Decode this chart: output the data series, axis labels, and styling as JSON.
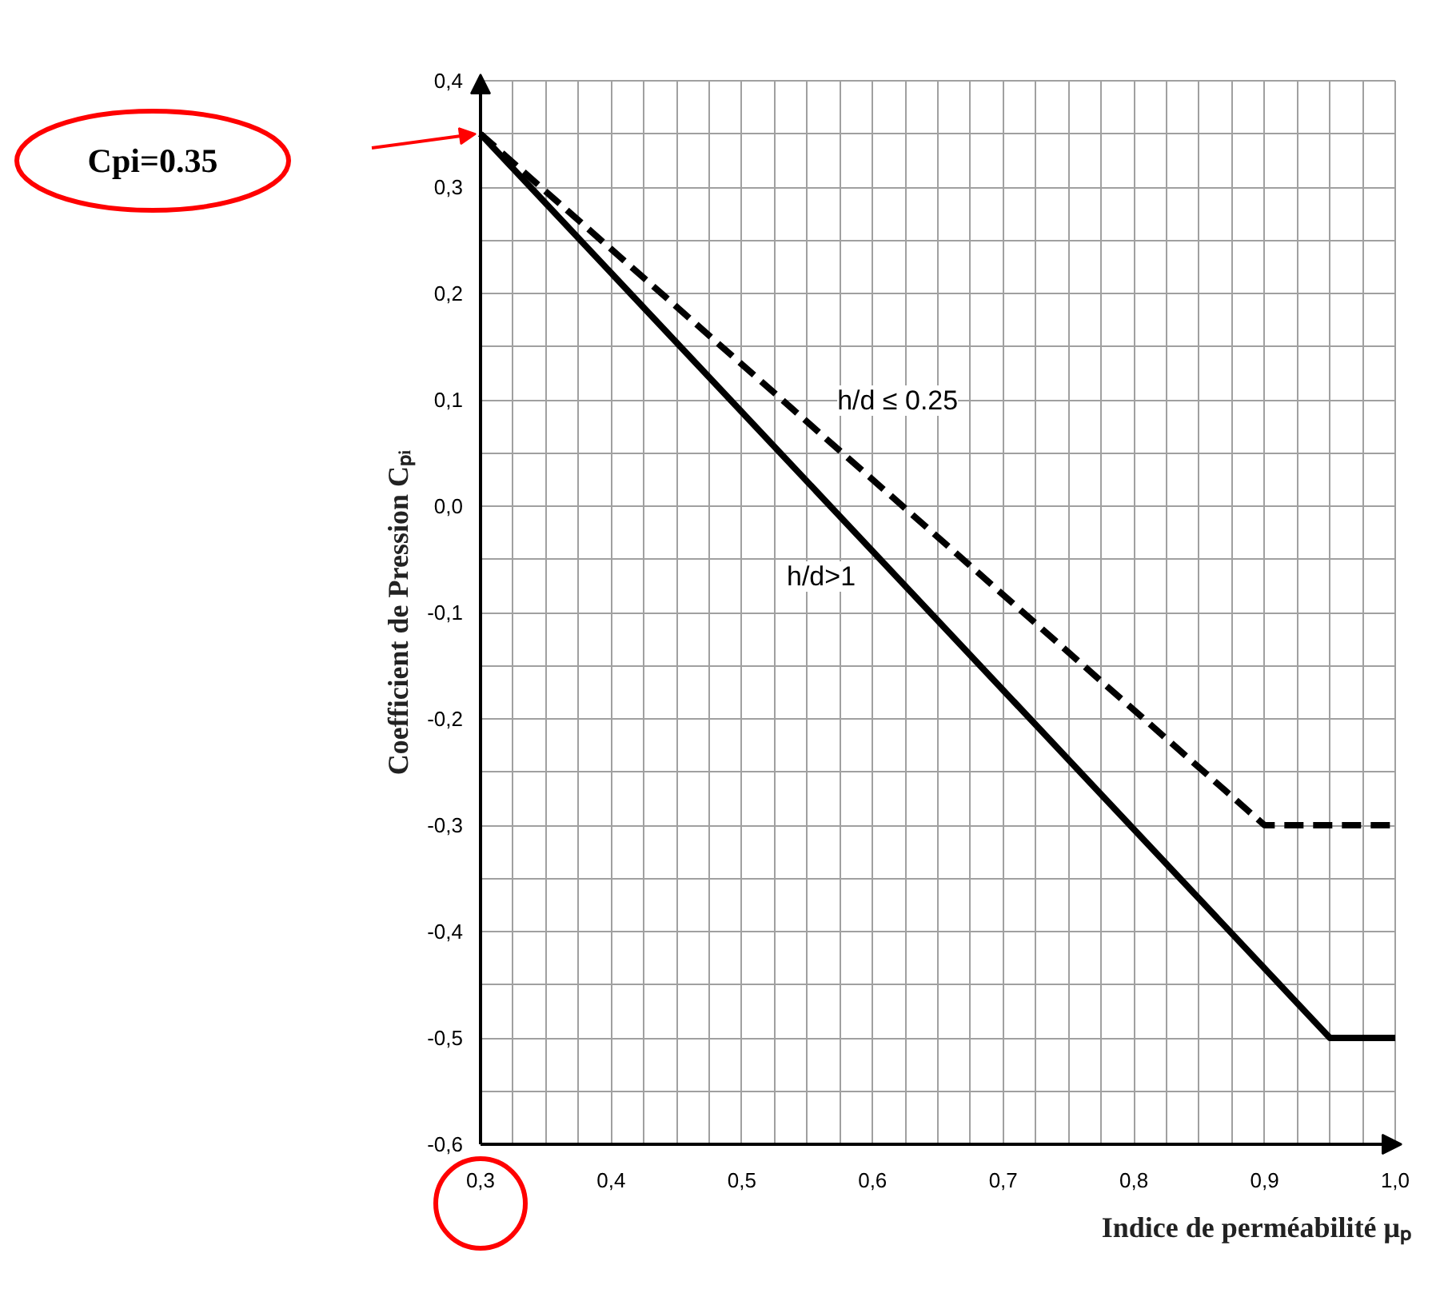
{
  "chart_data": {
    "type": "line",
    "xlabel": "Indice de perméabilité μₚ",
    "ylabel": "Coefficient de Pression Cₚᵢ",
    "series": [
      {
        "name": "h/d>1",
        "color": "#000000",
        "line_style": "solid",
        "x": [
          0.3,
          0.95,
          1.0
        ],
        "values": [
          0.35,
          -0.5,
          -0.5
        ]
      },
      {
        "name": "h/d ≤ 0.25",
        "color": "#000000",
        "line_style": "dashed",
        "x": [
          0.3,
          0.9,
          1.0
        ],
        "values": [
          0.35,
          -0.3,
          -0.3
        ]
      }
    ],
    "xlim": [
      0.3,
      1.0
    ],
    "ylim": [
      -0.6,
      0.4
    ],
    "xticks": [
      {
        "value": 0.3,
        "label": "0,3"
      },
      {
        "value": 0.325,
        "label": null
      },
      {
        "value": 0.35,
        "label": null
      },
      {
        "value": 0.375,
        "label": null
      },
      {
        "value": 0.4,
        "label": "0,4"
      },
      {
        "value": 0.425,
        "label": null
      },
      {
        "value": 0.45,
        "label": null
      },
      {
        "value": 0.475,
        "label": null
      },
      {
        "value": 0.5,
        "label": "0,5"
      },
      {
        "value": 0.525,
        "label": null
      },
      {
        "value": 0.55,
        "label": null
      },
      {
        "value": 0.575,
        "label": null
      },
      {
        "value": 0.6,
        "label": "0,6"
      },
      {
        "value": 0.625,
        "label": null
      },
      {
        "value": 0.65,
        "label": null
      },
      {
        "value": 0.675,
        "label": null
      },
      {
        "value": 0.7,
        "label": "0,7"
      },
      {
        "value": 0.725,
        "label": null
      },
      {
        "value": 0.75,
        "label": null
      },
      {
        "value": 0.775,
        "label": null
      },
      {
        "value": 0.8,
        "label": "0,8"
      },
      {
        "value": 0.825,
        "label": null
      },
      {
        "value": 0.85,
        "label": null
      },
      {
        "value": 0.875,
        "label": null
      },
      {
        "value": 0.9,
        "label": "0,9"
      },
      {
        "value": 0.925,
        "label": null
      },
      {
        "value": 0.95,
        "label": null
      },
      {
        "value": 0.975,
        "label": null
      },
      {
        "value": 1.0,
        "label": "1,0"
      }
    ],
    "yticks": [
      {
        "value": -0.6,
        "label": "-0,6"
      },
      {
        "value": -0.55,
        "label": null
      },
      {
        "value": -0.5,
        "label": "-0,5"
      },
      {
        "value": -0.45,
        "label": null
      },
      {
        "value": -0.4,
        "label": "-0,4"
      },
      {
        "value": -0.35,
        "label": null
      },
      {
        "value": -0.3,
        "label": "-0,3"
      },
      {
        "value": -0.25,
        "label": null
      },
      {
        "value": -0.2,
        "label": "-0,2"
      },
      {
        "value": -0.15,
        "label": null
      },
      {
        "value": -0.1,
        "label": "-0,1"
      },
      {
        "value": -0.05,
        "label": null
      },
      {
        "value": 0.0,
        "label": "0,0"
      },
      {
        "value": 0.05,
        "label": null
      },
      {
        "value": 0.1,
        "label": "0,1"
      },
      {
        "value": 0.15,
        "label": null
      },
      {
        "value": 0.2,
        "label": "0,2"
      },
      {
        "value": 0.25,
        "label": null
      },
      {
        "value": 0.3,
        "label": "0,3"
      },
      {
        "value": 0.35,
        "label": null
      },
      {
        "value": 0.4,
        "label": "0,4"
      }
    ],
    "grid": true,
    "annotations": [
      "Cpi=0.35"
    ]
  }
}
